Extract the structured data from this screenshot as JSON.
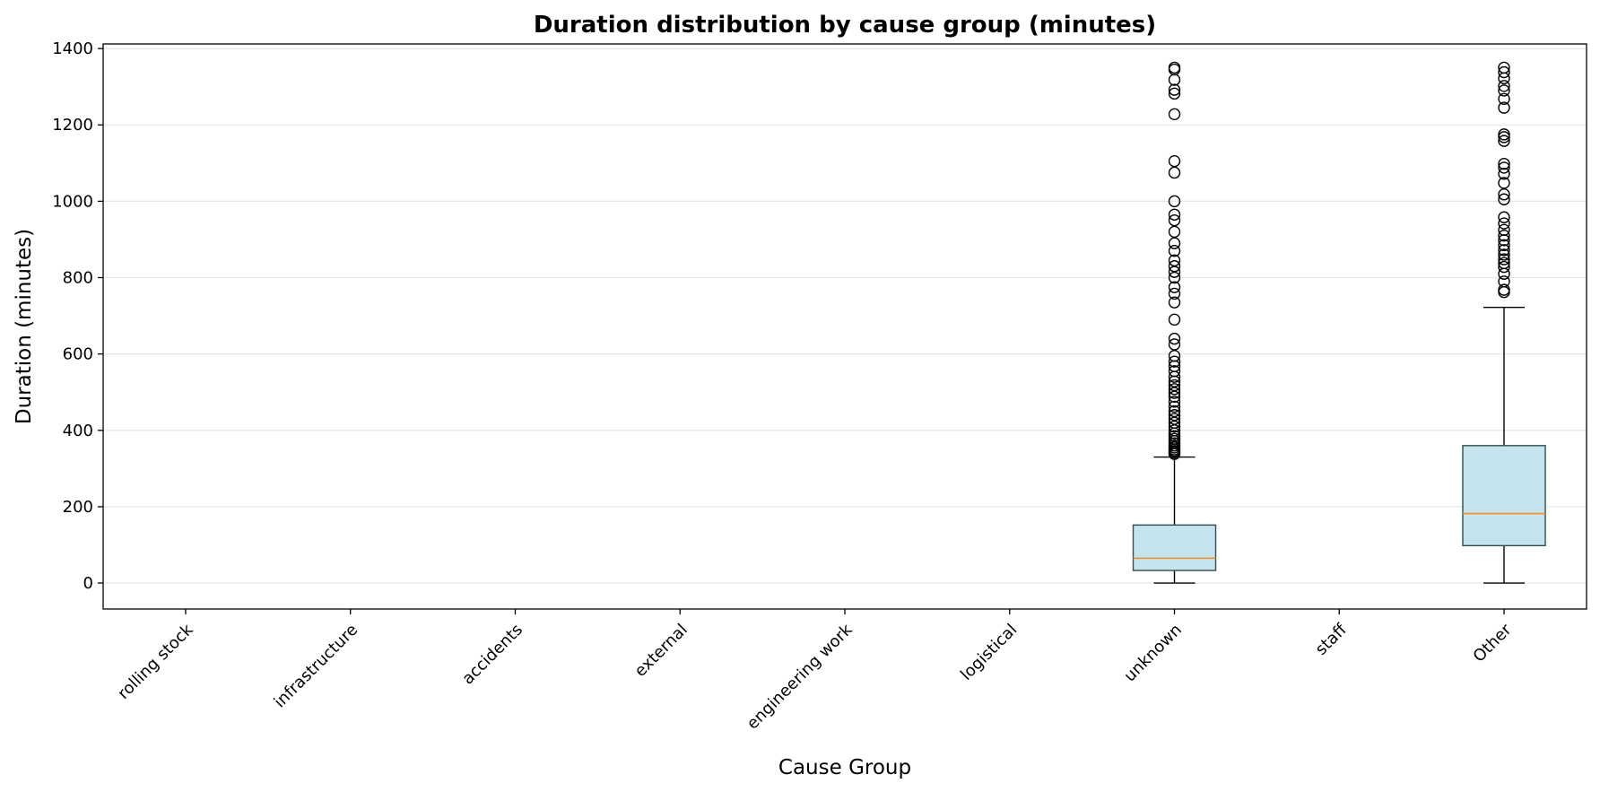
{
  "chart_data": {
    "type": "box",
    "title": "Duration distribution by cause group (minutes)",
    "xlabel": "Cause Group",
    "ylabel": "Duration (minutes)",
    "ylim": [
      -68,
      1412
    ],
    "yticks": [
      0,
      200,
      400,
      600,
      800,
      1000,
      1200,
      1400
    ],
    "grid": "y",
    "categories": [
      "rolling stock",
      "infrastructure",
      "accidents",
      "external",
      "engineering work",
      "logistical",
      "unknown",
      "staff",
      "Other"
    ],
    "boxes": [
      {
        "category": "rolling stock",
        "stats": null
      },
      {
        "category": "infrastructure",
        "stats": null
      },
      {
        "category": "accidents",
        "stats": null
      },
      {
        "category": "external",
        "stats": null
      },
      {
        "category": "engineering work",
        "stats": null
      },
      {
        "category": "logistical",
        "stats": null
      },
      {
        "category": "unknown",
        "stats": {
          "whislo": 0,
          "q1": 33,
          "med": 65,
          "q3": 152,
          "whishi": 330,
          "fliers": [
            338,
            342,
            346,
            350,
            355,
            360,
            366,
            372,
            378,
            385,
            392,
            400,
            410,
            420,
            430,
            440,
            450,
            462,
            475,
            488,
            498,
            508,
            518,
            528,
            540,
            555,
            568,
            580,
            595,
            625,
            640,
            690,
            735,
            758,
            775,
            800,
            815,
            830,
            845,
            870,
            890,
            920,
            950,
            965,
            1000,
            1075,
            1105,
            1228,
            1282,
            1292,
            1318,
            1345,
            1350
          ]
        }
      },
      {
        "category": "staff",
        "stats": null
      },
      {
        "category": "Other",
        "stats": {
          "whislo": 0,
          "q1": 98,
          "med": 182,
          "q3": 360,
          "whishi": 722,
          "fliers": [
            762,
            768,
            790,
            810,
            828,
            838,
            848,
            860,
            872,
            885,
            898,
            910,
            925,
            942,
            958,
            1005,
            1018,
            1048,
            1072,
            1088,
            1098,
            1158,
            1168,
            1175,
            1245,
            1268,
            1290,
            1302,
            1322,
            1338,
            1350
          ]
        }
      }
    ]
  },
  "colors": {
    "box_fill": "#c5e3ec",
    "box_edge": "#2f4f4f",
    "median": "#f28e2b",
    "whisker": "#000000",
    "grid": "#e6e6e6"
  }
}
